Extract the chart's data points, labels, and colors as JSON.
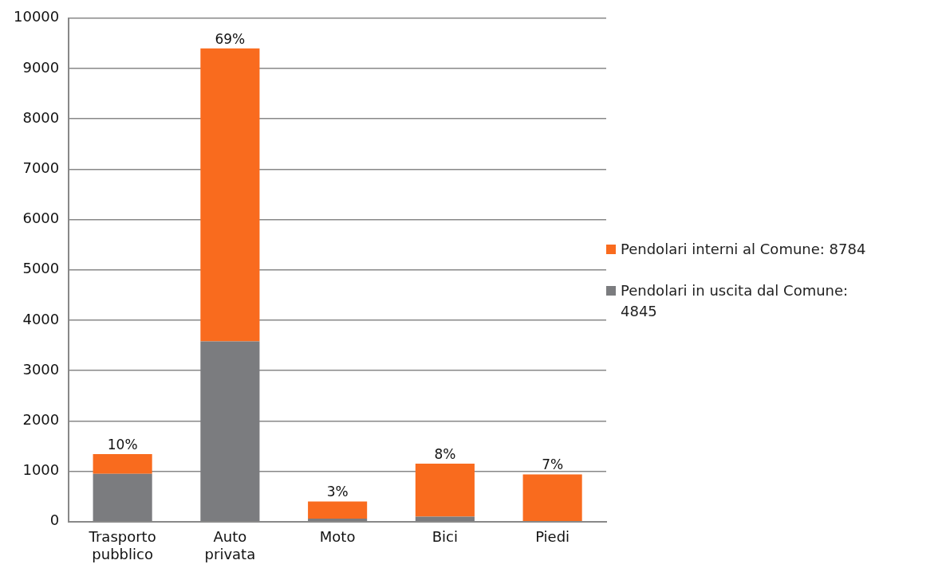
{
  "chart_data": {
    "type": "bar",
    "stacked": true,
    "categories": [
      "Trasporto pubblico",
      "Auto privata",
      "Moto",
      "Bici",
      "Piedi"
    ],
    "series": [
      {
        "name": "Pendolari in uscita dal Comune: 4845",
        "color": "#7b7c7f",
        "values": [
          950,
          3580,
          60,
          100,
          0
        ]
      },
      {
        "name": "Pendolari interni al Comune: 8784",
        "color": "#f96b1e",
        "values": [
          390,
          5820,
          340,
          1050,
          940
        ]
      }
    ],
    "annotations": [
      {
        "text": "10%",
        "x": "Trasporto pubblico",
        "y": 1340
      },
      {
        "text": "69%",
        "x": "Auto privata",
        "y": 9400
      },
      {
        "text": "3%",
        "x": "Moto",
        "y": 400
      },
      {
        "text": "8%",
        "x": "Bici",
        "y": 1150
      },
      {
        "text": "7%",
        "x": "Piedi",
        "y": 940
      }
    ],
    "ylim": [
      0,
      10000
    ],
    "yticks": [
      0,
      1000,
      2000,
      3000,
      4000,
      5000,
      6000,
      7000,
      8000,
      9000,
      10000
    ],
    "grid": "y",
    "legend": "right"
  }
}
